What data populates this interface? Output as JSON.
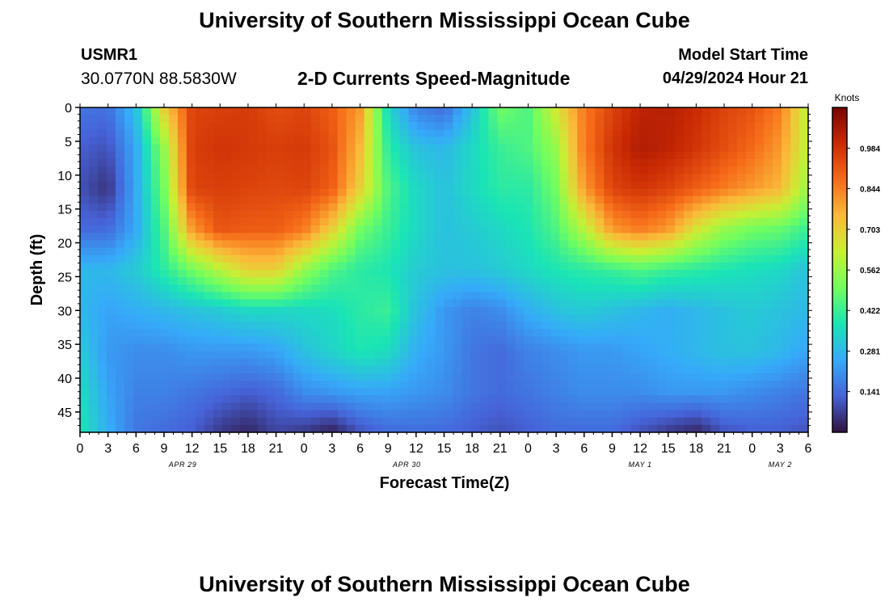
{
  "page": {
    "title": "University of Southern Mississippi Ocean Cube",
    "footer_title": "University of Southern Mississippi Ocean Cube",
    "station": "USMR1",
    "coordinates": "30.0770N  88.5830W",
    "model_start_label": "Model Start Time",
    "model_start_value": "04/29/2024 Hour 21"
  },
  "chart_data": {
    "type": "heatmap",
    "title": "2-D Currents Speed-Magnitude",
    "xlabel": "Forecast Time(Z)",
    "ylabel": "Depth (ft)",
    "colorbar_label": "Knots",
    "x_range_hours": [
      0,
      78
    ],
    "y_range_ft": [
      0,
      48
    ],
    "y_inverted": true,
    "x_tick_labels": [
      "0",
      "3",
      "6",
      "9",
      "12",
      "15",
      "18",
      "21",
      "0",
      "3",
      "6",
      "9",
      "12",
      "15",
      "18",
      "21",
      "0",
      "3",
      "6",
      "9",
      "12",
      "15",
      "18",
      "21",
      "0",
      "3",
      "6"
    ],
    "y_tick_labels": [
      "0",
      "5",
      "10",
      "15",
      "20",
      "25",
      "30",
      "35",
      "40",
      "45"
    ],
    "day_labels": [
      {
        "text": "APR 29",
        "hour": 11
      },
      {
        "text": "APR 30",
        "hour": 35
      },
      {
        "text": "MAY 1",
        "hour": 60
      },
      {
        "text": "MAY 2",
        "hour": 75
      }
    ],
    "colorbar_ticks": [
      "0.984",
      "0.844",
      "0.703",
      "0.562",
      "0.422",
      "0.281",
      "0.141"
    ],
    "colorbar_range": [
      0,
      1.125
    ],
    "colormap": [
      "#30123b",
      "#4662d7",
      "#36aaf9",
      "#1ae4b6",
      "#72fe5e",
      "#c8ef34",
      "#faba39",
      "#f66b19",
      "#ca2a04",
      "#7a0403"
    ],
    "grid": false,
    "depth_levels_ft": [
      0,
      6,
      12,
      18,
      24,
      30,
      36,
      42,
      48
    ],
    "hour_levels": [
      0,
      3,
      6,
      9,
      12,
      15,
      18,
      21,
      24,
      27,
      30,
      33,
      36,
      39,
      42,
      45,
      48,
      51,
      54,
      57,
      60,
      63,
      66,
      69,
      72,
      75,
      78
    ],
    "speed_knots": [
      [
        0.16,
        0.15,
        0.3,
        0.7,
        0.95,
        0.96,
        0.97,
        0.93,
        0.95,
        0.9,
        0.8,
        0.35,
        0.18,
        0.14,
        0.3,
        0.5,
        0.45,
        0.65,
        0.85,
        0.95,
        1.02,
        1.03,
        1.0,
        0.95,
        0.92,
        0.85,
        0.6
      ],
      [
        0.12,
        0.1,
        0.25,
        0.55,
        0.96,
        0.98,
        0.97,
        0.96,
        0.97,
        0.92,
        0.75,
        0.4,
        0.3,
        0.28,
        0.35,
        0.42,
        0.45,
        0.55,
        0.85,
        0.98,
        1.04,
        1.02,
        0.98,
        0.93,
        0.88,
        0.8,
        0.6
      ],
      [
        0.1,
        0.05,
        0.25,
        0.5,
        0.95,
        0.96,
        0.95,
        0.94,
        0.95,
        0.9,
        0.7,
        0.45,
        0.35,
        0.3,
        0.35,
        0.4,
        0.4,
        0.5,
        0.8,
        0.95,
        0.98,
        0.95,
        0.9,
        0.85,
        0.8,
        0.75,
        0.55
      ],
      [
        0.14,
        0.14,
        0.25,
        0.45,
        0.8,
        0.92,
        0.9,
        0.9,
        0.85,
        0.7,
        0.5,
        0.42,
        0.35,
        0.3,
        0.32,
        0.35,
        0.38,
        0.45,
        0.6,
        0.8,
        0.85,
        0.8,
        0.65,
        0.55,
        0.5,
        0.48,
        0.42
      ],
      [
        0.28,
        0.28,
        0.32,
        0.4,
        0.5,
        0.6,
        0.7,
        0.7,
        0.55,
        0.45,
        0.4,
        0.38,
        0.32,
        0.3,
        0.3,
        0.32,
        0.35,
        0.38,
        0.4,
        0.42,
        0.45,
        0.42,
        0.4,
        0.38,
        0.36,
        0.35,
        0.3
      ],
      [
        0.28,
        0.24,
        0.26,
        0.28,
        0.3,
        0.32,
        0.35,
        0.35,
        0.35,
        0.36,
        0.4,
        0.42,
        0.3,
        0.22,
        0.18,
        0.2,
        0.26,
        0.3,
        0.32,
        0.3,
        0.28,
        0.26,
        0.28,
        0.3,
        0.32,
        0.3,
        0.28
      ],
      [
        0.32,
        0.22,
        0.2,
        0.2,
        0.22,
        0.22,
        0.22,
        0.24,
        0.3,
        0.34,
        0.38,
        0.36,
        0.26,
        0.22,
        0.16,
        0.14,
        0.18,
        0.2,
        0.22,
        0.22,
        0.24,
        0.26,
        0.28,
        0.3,
        0.3,
        0.28,
        0.24
      ],
      [
        0.36,
        0.24,
        0.18,
        0.18,
        0.16,
        0.14,
        0.12,
        0.14,
        0.2,
        0.22,
        0.24,
        0.24,
        0.22,
        0.2,
        0.16,
        0.14,
        0.16,
        0.18,
        0.2,
        0.2,
        0.2,
        0.22,
        0.22,
        0.22,
        0.2,
        0.18,
        0.16
      ],
      [
        0.38,
        0.26,
        0.16,
        0.14,
        0.12,
        0.06,
        0.03,
        0.08,
        0.06,
        0.02,
        0.1,
        0.14,
        0.14,
        0.14,
        0.12,
        0.1,
        0.12,
        0.14,
        0.14,
        0.14,
        0.1,
        0.06,
        0.03,
        0.1,
        0.12,
        0.12,
        0.1
      ]
    ]
  }
}
